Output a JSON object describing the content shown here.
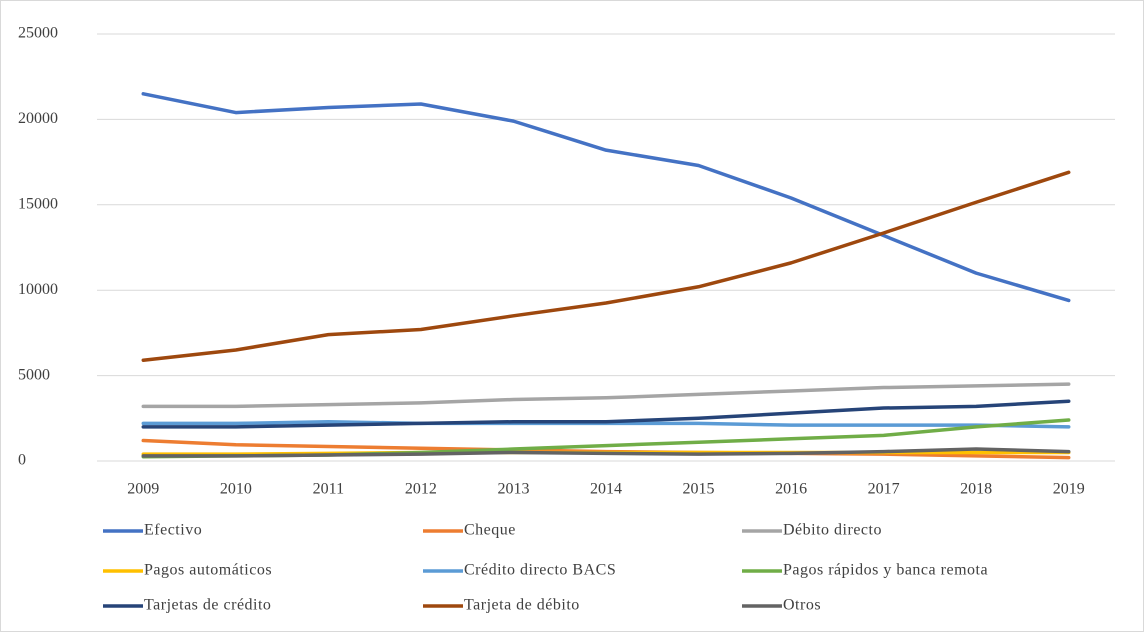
{
  "chart_data": {
    "type": "line",
    "categories": [
      "2009",
      "2010",
      "2011",
      "2012",
      "2013",
      "2014",
      "2015",
      "2016",
      "2017",
      "2018",
      "2019"
    ],
    "series": [
      {
        "name": "Efectivo",
        "color": "#4472c4",
        "values": [
          21500,
          20400,
          20700,
          20900,
          19900,
          18200,
          17300,
          15400,
          13200,
          11000,
          9400
        ]
      },
      {
        "name": "Cheque",
        "color": "#ed7d31",
        "values": [
          1200,
          950,
          850,
          750,
          650,
          550,
          500,
          450,
          400,
          300,
          200
        ]
      },
      {
        "name": "Débito directo",
        "color": "#a5a5a5",
        "values": [
          3200,
          3200,
          3300,
          3400,
          3600,
          3700,
          3900,
          4100,
          4300,
          4400,
          4500
        ]
      },
      {
        "name": "Pagos automáticos",
        "color": "#ffc000",
        "values": [
          400,
          400,
          450,
          500,
          500,
          500,
          500,
          500,
          500,
          500,
          500
        ]
      },
      {
        "name": "Crédito directo BACS",
        "color": "#5b9bd5",
        "values": [
          2200,
          2200,
          2300,
          2200,
          2200,
          2200,
          2200,
          2100,
          2100,
          2100,
          2000
        ]
      },
      {
        "name": "Pagos rápidos y banca remota",
        "color": "#70ad47",
        "values": [
          250,
          300,
          350,
          500,
          700,
          900,
          1100,
          1300,
          1500,
          2000,
          2400
        ]
      },
      {
        "name": "Tarjetas de crédito",
        "color": "#264478",
        "values": [
          2000,
          2000,
          2100,
          2200,
          2300,
          2300,
          2500,
          2800,
          3100,
          3200,
          3500
        ]
      },
      {
        "name": "Tarjeta de débito",
        "color": "#9e480e",
        "values": [
          5900,
          6500,
          7400,
          7700,
          8500,
          9250,
          10200,
          11600,
          13350,
          15150,
          16900
        ]
      },
      {
        "name": "Otros",
        "color": "#636363",
        "values": [
          300,
          300,
          350,
          400,
          500,
          450,
          400,
          450,
          550,
          700,
          550
        ]
      }
    ],
    "ylim": [
      0,
      25000
    ],
    "yticks": [
      0,
      5000,
      10000,
      15000,
      20000,
      25000
    ],
    "grid": true,
    "legend": "bottom"
  }
}
